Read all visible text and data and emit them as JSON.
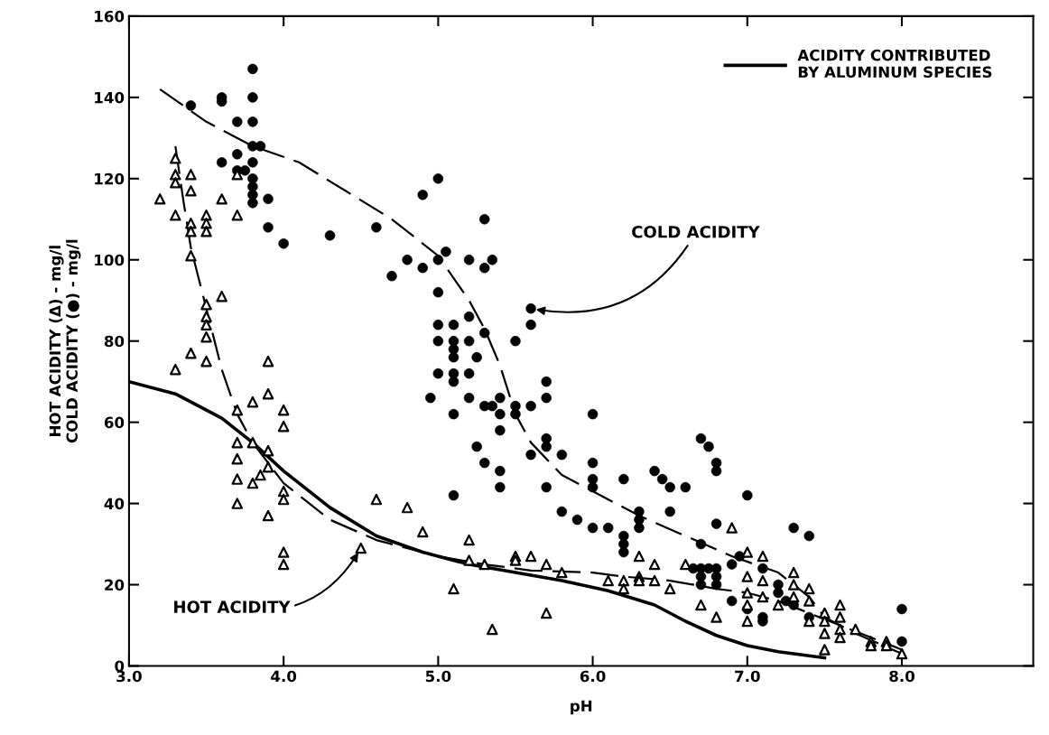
{
  "chart_data": {
    "type": "scatter",
    "xlabel": "pH",
    "ylabel": "HOT ACIDITY (Δ) - mg/l\nCOLD ACIDITY (●) - mg/l",
    "xlim": [
      3.0,
      8.85
    ],
    "ylim": [
      0,
      160
    ],
    "xticks": [
      {
        "value": 3,
        "label": "3.0"
      },
      {
        "value": 4,
        "label": "4.0"
      },
      {
        "value": 5,
        "label": "5.0"
      },
      {
        "value": 6,
        "label": "6.0"
      },
      {
        "value": 7,
        "label": "7.0"
      },
      {
        "value": 8,
        "label": "8.0"
      }
    ],
    "yticks": [
      0,
      20,
      40,
      60,
      80,
      100,
      120,
      140,
      160
    ],
    "grid": false,
    "legend": "top right",
    "annotations": [
      {
        "text": "COLD ACIDITY",
        "x": 5.6,
        "y": 88
      },
      {
        "text": "HOT ACIDITY",
        "x": 4.5,
        "y": 29
      }
    ],
    "series": [
      {
        "marker": "circle",
        "color": "#000000",
        "x": [
          3.4,
          3.6,
          3.6,
          3.6,
          3.7,
          3.7,
          3.7,
          3.75,
          3.8,
          3.8,
          3.8,
          3.8,
          3.85,
          3.8,
          3.8,
          3.8,
          3.8,
          3.8,
          3.9,
          3.9,
          4.0,
          4.3,
          4.6,
          4.7,
          4.8,
          4.9,
          4.9,
          5.0,
          5.0,
          5.05,
          5.0,
          5.0,
          5.0,
          5.0,
          4.95,
          5.1,
          5.1,
          5.1,
          5.1,
          5.1,
          5.1,
          5.1,
          5.1,
          5.2,
          5.2,
          5.2,
          5.2,
          5.2,
          5.25,
          5.25,
          5.3,
          5.3,
          5.35,
          5.3,
          5.3,
          5.35,
          5.3,
          5.4,
          5.4,
          5.4,
          5.4,
          5.4,
          5.5,
          5.5,
          5.5,
          5.6,
          5.6,
          5.6,
          5.6,
          5.7,
          5.7,
          5.7,
          5.7,
          5.7,
          5.8,
          5.8,
          5.9,
          6.0,
          6.0,
          6.0,
          6.0,
          6.0,
          6.1,
          6.2,
          6.2,
          6.2,
          6.2,
          6.3,
          6.3,
          6.3,
          6.4,
          6.45,
          6.5,
          6.5,
          6.6,
          6.7,
          6.75,
          6.8,
          6.8,
          6.8,
          6.7,
          6.65,
          6.7,
          6.7,
          6.7,
          6.75,
          6.8,
          6.8,
          6.8,
          6.9,
          6.95,
          6.9,
          7.0,
          7.0,
          7.1,
          7.1,
          7.1,
          7.2,
          7.2,
          7.25,
          7.3,
          7.3,
          7.4,
          7.4,
          8.0,
          8.0
        ],
        "values": [
          138,
          140,
          139,
          124,
          134,
          126,
          122,
          122,
          147,
          140,
          134,
          128,
          128,
          124,
          120,
          118,
          116,
          114,
          115,
          108,
          104,
          106,
          108,
          96,
          100,
          98,
          116,
          120,
          100,
          102,
          92,
          84,
          80,
          72,
          66,
          84,
          80,
          78,
          76,
          72,
          70,
          62,
          42,
          100,
          86,
          80,
          72,
          66,
          54,
          76,
          110,
          98,
          100,
          82,
          64,
          64,
          50,
          66,
          62,
          58,
          48,
          44,
          80,
          64,
          62,
          88,
          84,
          64,
          52,
          70,
          66,
          56,
          54,
          44,
          52,
          38,
          36,
          62,
          50,
          46,
          44,
          34,
          34,
          46,
          32,
          30,
          28,
          38,
          36,
          34,
          48,
          46,
          44,
          38,
          44,
          56,
          54,
          50,
          48,
          35,
          30,
          24,
          24,
          22,
          20,
          24,
          24,
          22,
          20,
          25,
          27,
          16,
          42,
          14,
          24,
          12,
          11,
          20,
          18,
          16,
          34,
          15,
          32,
          12,
          14,
          6
        ]
      },
      {
        "marker": "triangle",
        "color": "#000000",
        "x": [
          3.2,
          3.3,
          3.3,
          3.3,
          3.3,
          3.3,
          3.4,
          3.4,
          3.4,
          3.4,
          3.4,
          3.4,
          3.5,
          3.5,
          3.5,
          3.5,
          3.5,
          3.5,
          3.5,
          3.5,
          3.6,
          3.6,
          3.7,
          3.7,
          3.7,
          3.7,
          3.7,
          3.7,
          3.7,
          3.8,
          3.8,
          3.8,
          3.85,
          3.9,
          3.9,
          3.9,
          3.9,
          3.9,
          4.0,
          4.0,
          4.0,
          4.0,
          4.0,
          4.0,
          4.5,
          4.6,
          4.8,
          4.9,
          5.1,
          5.2,
          5.2,
          5.3,
          5.35,
          5.5,
          5.5,
          5.6,
          5.7,
          5.7,
          5.8,
          6.1,
          6.2,
          6.2,
          6.3,
          6.3,
          6.3,
          6.4,
          6.4,
          6.5,
          6.6,
          6.7,
          6.8,
          6.9,
          7.0,
          7.0,
          7.0,
          7.0,
          7.0,
          7.1,
          7.1,
          7.1,
          7.2,
          7.3,
          7.3,
          7.3,
          7.4,
          7.4,
          7.4,
          7.5,
          7.5,
          7.5,
          7.5,
          7.6,
          7.6,
          7.6,
          7.6,
          7.7,
          7.8,
          7.8,
          7.9,
          7.9,
          8.0
        ],
        "values": [
          115,
          125,
          121,
          119,
          111,
          73,
          121,
          117,
          109,
          107,
          101,
          77,
          111,
          109,
          107,
          89,
          86,
          84,
          81,
          75,
          115,
          91,
          121,
          111,
          63,
          55,
          51,
          46,
          40,
          65,
          55,
          45,
          47,
          75,
          67,
          53,
          49,
          37,
          63,
          59,
          43,
          41,
          28,
          25,
          29,
          41,
          39,
          33,
          19,
          31,
          26,
          25,
          9,
          27,
          26,
          27,
          25,
          13,
          23,
          21,
          21,
          19,
          27,
          22,
          21,
          25,
          21,
          19,
          25,
          15,
          12,
          34,
          28,
          22,
          18,
          15,
          11,
          27,
          21,
          17,
          15,
          23,
          20,
          17,
          19,
          16,
          11,
          13,
          11,
          8,
          4,
          15,
          12,
          9,
          7,
          9,
          6,
          5,
          6,
          5,
          3
        ]
      },
      {
        "type": "line",
        "name": "ACIDITY CONTRIBUTED\nBY ALUMINUM SPECIES",
        "color": "#000000",
        "line_style": "solid",
        "x": [
          3.0,
          3.3,
          3.6,
          3.8,
          4.0,
          4.3,
          4.6,
          4.9,
          5.2,
          5.5,
          5.8,
          6.1,
          6.4,
          6.6,
          6.8,
          7.0,
          7.2,
          7.5
        ],
        "values": [
          70,
          67,
          61,
          55,
          48,
          39,
          32,
          28,
          25,
          23,
          21,
          18.5,
          15,
          11,
          7.5,
          5,
          3.5,
          2
        ]
      },
      {
        "type": "line",
        "color": "#000000",
        "line_style": "dashed",
        "x": [
          3.2,
          3.5,
          3.8,
          4.1,
          4.4,
          4.7,
          5.0,
          5.2,
          5.3,
          5.4,
          5.5,
          5.6,
          5.8,
          6.0,
          6.3,
          6.6,
          6.9,
          7.2,
          7.4,
          7.5,
          7.7,
          8.0
        ],
        "values": [
          142,
          134,
          128,
          124,
          117,
          110,
          101,
          90,
          83,
          74,
          62,
          55,
          47,
          43,
          37,
          32,
          27,
          23,
          17,
          12,
          8,
          3
        ]
      },
      {
        "type": "line",
        "color": "#000000",
        "line_style": "dashed",
        "x": [
          3.3,
          3.35,
          3.4,
          3.5,
          3.6,
          3.7,
          3.8,
          3.9,
          4.0,
          4.3,
          4.6,
          5.0,
          5.3,
          5.6,
          6.0,
          6.2,
          6.5,
          6.8,
          7.0,
          7.2,
          7.4,
          7.6,
          8.0
        ],
        "values": [
          128,
          115,
          103,
          88,
          73,
          62,
          55,
          50,
          45,
          36,
          31,
          27,
          25,
          23.5,
          23,
          22,
          21,
          19,
          18,
          16,
          13,
          10,
          4
        ]
      }
    ]
  }
}
